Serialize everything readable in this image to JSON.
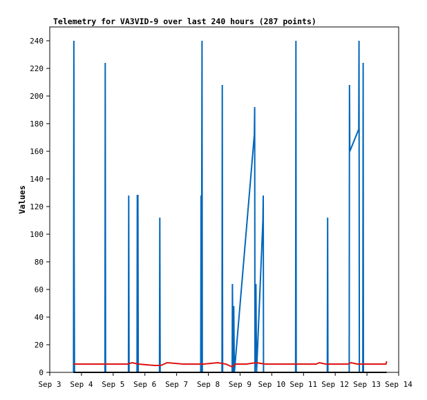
{
  "chart_data": {
    "type": "line",
    "title": "Telemetry for VA3VID-9 over last 240 hours (287 points)",
    "xlabel": "",
    "ylabel": "Values",
    "ylim": [
      0,
      250
    ],
    "xlim": [
      3.0,
      14.0
    ],
    "x_unit": "day of September",
    "y_ticks": [
      0,
      20,
      40,
      60,
      80,
      100,
      120,
      140,
      160,
      180,
      200,
      220,
      240
    ],
    "x_ticks": [
      {
        "label": "Sep 3",
        "x": 3
      },
      {
        "label": "Sep 4",
        "x": 4
      },
      {
        "label": "Sep 5",
        "x": 5
      },
      {
        "label": "Sep 6",
        "x": 6
      },
      {
        "label": "Sep 7",
        "x": 7
      },
      {
        "label": "Sep 8",
        "x": 8
      },
      {
        "label": "Sep 9",
        "x": 9
      },
      {
        "label": "Sep 10",
        "x": 10
      },
      {
        "label": "Sep 11",
        "x": 11
      },
      {
        "label": "Sep 12",
        "x": 12
      },
      {
        "label": "Sep 13",
        "x": 13
      },
      {
        "label": "Sep 14",
        "x": 14
      }
    ],
    "grid": false,
    "legend": "none",
    "series": [
      {
        "color": "#0066bb",
        "points": [
          [
            3.75,
            0
          ],
          [
            3.76,
            240
          ],
          [
            3.77,
            88
          ],
          [
            3.78,
            0
          ],
          [
            4.74,
            0
          ],
          [
            4.75,
            224
          ],
          [
            4.76,
            0
          ],
          [
            5.48,
            0
          ],
          [
            5.49,
            128
          ],
          [
            5.5,
            0
          ],
          [
            5.75,
            0
          ],
          [
            5.76,
            128
          ],
          [
            5.78,
            128
          ],
          [
            5.79,
            0
          ],
          [
            6.46,
            0
          ],
          [
            6.47,
            112
          ],
          [
            6.48,
            0
          ],
          [
            7.76,
            0
          ],
          [
            7.77,
            128
          ],
          [
            7.78,
            0
          ],
          [
            7.8,
            240
          ],
          [
            7.81,
            0
          ],
          [
            8.43,
            0
          ],
          [
            8.44,
            208
          ],
          [
            8.45,
            0
          ],
          [
            8.75,
            0
          ],
          [
            8.76,
            64
          ],
          [
            8.78,
            0
          ],
          [
            8.8,
            48
          ],
          [
            8.82,
            0
          ],
          [
            9.45,
            172
          ],
          [
            9.46,
            192
          ],
          [
            9.47,
            0
          ],
          [
            9.5,
            64
          ],
          [
            9.52,
            0
          ],
          [
            9.72,
            110
          ],
          [
            9.73,
            128
          ],
          [
            9.74,
            0
          ],
          [
            10.75,
            0
          ],
          [
            10.76,
            240
          ],
          [
            10.77,
            0
          ],
          [
            11.75,
            0
          ],
          [
            11.76,
            112
          ],
          [
            11.77,
            0
          ],
          [
            12.44,
            0
          ],
          [
            12.45,
            208
          ],
          [
            12.46,
            160
          ],
          [
            12.74,
            176
          ],
          [
            12.75,
            240
          ],
          [
            12.76,
            0
          ],
          [
            12.87,
            0
          ],
          [
            12.88,
            224
          ],
          [
            12.89,
            0
          ]
        ]
      },
      {
        "color": "#dd1111",
        "points": [
          [
            3.75,
            6
          ],
          [
            5.45,
            6
          ],
          [
            5.6,
            7
          ],
          [
            5.8,
            6
          ],
          [
            6.3,
            5
          ],
          [
            6.5,
            5
          ],
          [
            6.7,
            7
          ],
          [
            7.2,
            6
          ],
          [
            7.5,
            6
          ],
          [
            7.85,
            6
          ],
          [
            8.3,
            7
          ],
          [
            8.55,
            6
          ],
          [
            8.75,
            4
          ],
          [
            8.85,
            6
          ],
          [
            9.2,
            6
          ],
          [
            9.5,
            7
          ],
          [
            9.8,
            6
          ],
          [
            10.7,
            6
          ],
          [
            11.4,
            6
          ],
          [
            11.5,
            7
          ],
          [
            11.7,
            6
          ],
          [
            12.4,
            6
          ],
          [
            12.5,
            7
          ],
          [
            12.7,
            6
          ],
          [
            13.6,
            6
          ],
          [
            13.62,
            8
          ]
        ]
      },
      {
        "color": "#000000",
        "points": [
          [
            3.75,
            0
          ],
          [
            13.62,
            0
          ]
        ]
      }
    ]
  }
}
